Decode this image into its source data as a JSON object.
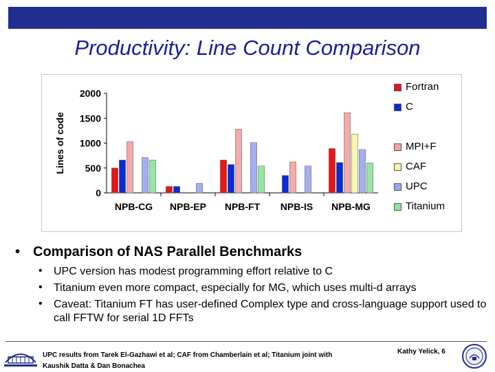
{
  "slide": {
    "title": "Productivity: Line Count Comparison",
    "main_bullet": "Comparison of NAS Parallel Benchmarks",
    "sub_bullets": [
      "UPC version has modest programming effort relative to C",
      "Titanium even more compact, especially for MG, which uses multi-d arrays",
      "Caveat: Titanium FT has user-defined Complex type and cross-language support used to call FFTW for serial 1D FFTs"
    ],
    "bullet_glyph": "•",
    "footer_note": "UPC results from Tarek El-Gazhawi et al; CAF from Chamberlain et al; Titanium joint  with Kaushik Datta & Dan Bonachea",
    "footer_author": "Kathy Yelick, 6",
    "colors": {
      "top_bar": "#1f2e8f",
      "title": "#1c1e9a"
    }
  },
  "chart_data": {
    "type": "bar",
    "title": "",
    "xlabel": "",
    "ylabel": "Lines of code",
    "ylim": [
      0,
      2000
    ],
    "yticks": [
      0,
      500,
      1000,
      1500,
      2000
    ],
    "grid": false,
    "legend_position": "right",
    "categories": [
      "NPB-CG",
      "NPB-EP",
      "NPB-FT",
      "NPB-IS",
      "NPB-MG"
    ],
    "series": [
      {
        "name": "Fortran",
        "color": "#e8151b",
        "pattern": "solid",
        "values": [
          500,
          130,
          660,
          null,
          890
        ]
      },
      {
        "name": "C",
        "color": "#0a2bd6",
        "pattern": "solid",
        "values": [
          660,
          130,
          570,
          350,
          610
        ]
      },
      {
        "name": "MPI+F",
        "color": "#f4a3a3",
        "pattern": "hatch",
        "values": [
          1030,
          null,
          1280,
          620,
          1610
        ]
      },
      {
        "name": "CAF",
        "color": "#f8f5a8",
        "pattern": "hatch",
        "values": [
          null,
          null,
          null,
          null,
          1180
        ]
      },
      {
        "name": "UPC",
        "color": "#9aa8f0",
        "pattern": "hatch",
        "values": [
          710,
          190,
          1010,
          540,
          870
        ]
      },
      {
        "name": "Titanium",
        "color": "#8ee39a",
        "pattern": "hatch",
        "values": [
          660,
          null,
          540,
          null,
          600
        ]
      }
    ]
  }
}
